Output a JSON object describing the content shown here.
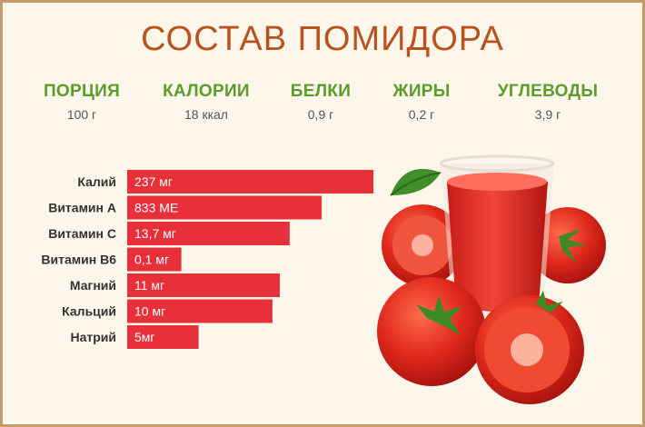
{
  "title": "СОСТАВ ПОМИДОРА",
  "nutrients": [
    {
      "name": "ПОРЦИЯ",
      "value": "100 г"
    },
    {
      "name": "КАЛОРИИ",
      "value": "18 ккал"
    },
    {
      "name": "БЕЛКИ",
      "value": "0,9 г"
    },
    {
      "name": "ЖИРЫ",
      "value": "0,2 г"
    },
    {
      "name": "УГЛЕВОДЫ",
      "value": "3,9 г"
    }
  ],
  "colors": {
    "title": "#b8531f",
    "header": "#5a9d2a",
    "bar": "#e8303a",
    "background": "#fdf6ea"
  },
  "chart_data": {
    "type": "bar",
    "orientation": "horizontal",
    "categories": [
      "Калий",
      "Витамин А",
      "Витамин С",
      "Витамин В6",
      "Магний",
      "Кальций",
      "Натрий"
    ],
    "value_labels": [
      "237 мг",
      "833 МЕ",
      "13,7 мг",
      "0,1 мг",
      "11 мг",
      "10 мг",
      "5мг"
    ],
    "bar_fraction": [
      1.0,
      0.79,
      0.66,
      0.22,
      0.62,
      0.59,
      0.29
    ],
    "grid": false,
    "legend": "none"
  }
}
